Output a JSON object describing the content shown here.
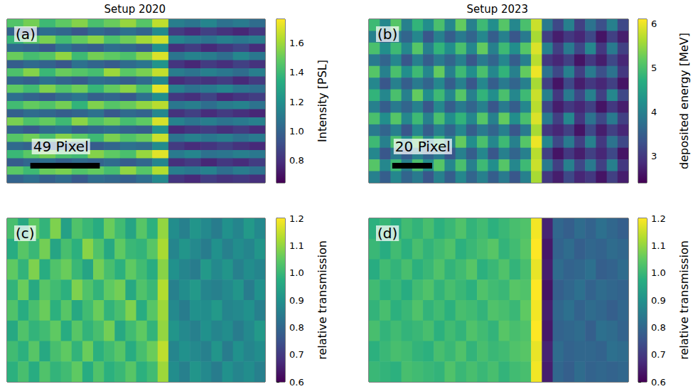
{
  "chart_data": [
    {
      "type": "heatmap",
      "title": "Setup 2020",
      "panel_label": "(a)",
      "xlim": [
        0,
        182
      ],
      "ylim": [
        0,
        115
      ],
      "tick_labels": false,
      "scale_bar": {
        "length": 49,
        "label": "49 Pixel"
      },
      "colorbar": {
        "label": "Intensity [PSL]",
        "range": [
          0.65,
          1.76
        ],
        "ticks": [
          0.8,
          {
            "value": 1,
            "label": "1.0"
          },
          1.2,
          1.4,
          1.6
        ]
      },
      "cells": [
        [
          1.45,
          1.52,
          1.4,
          1.48,
          1.55,
          1.43,
          1.5,
          1.58,
          1.46,
          1.65,
          1.12,
          1.08,
          1.15,
          1.06,
          1.1,
          1.04
        ],
        [
          1.0,
          0.97,
          1.05,
          1.02,
          0.95,
          1.03,
          0.99,
          1.06,
          1.01,
          1.18,
          0.84,
          0.79,
          0.86,
          0.81,
          0.77,
          0.83
        ],
        [
          1.38,
          1.47,
          1.53,
          1.41,
          1.49,
          1.56,
          1.44,
          1.51,
          1.6,
          1.68,
          1.15,
          1.1,
          1.07,
          1.13,
          1.09,
          1.11
        ],
        [
          1.04,
          1.01,
          0.96,
          1.07,
          1.0,
          0.98,
          1.05,
          1.02,
          0.97,
          1.2,
          0.8,
          0.85,
          0.78,
          0.83,
          0.88,
          0.79
        ],
        [
          1.5,
          1.42,
          1.46,
          1.57,
          1.4,
          1.52,
          1.48,
          1.44,
          1.55,
          1.7,
          1.08,
          1.14,
          1.11,
          1.05,
          1.16,
          1.09
        ],
        [
          0.98,
          1.03,
          1.0,
          0.95,
          1.06,
          1.01,
          0.97,
          1.04,
          1.08,
          1.22,
          0.82,
          0.77,
          0.84,
          0.8,
          0.86,
          0.81
        ],
        [
          1.44,
          1.55,
          1.39,
          1.5,
          1.46,
          1.42,
          1.59,
          1.47,
          1.53,
          1.66,
          1.11,
          1.07,
          1.13,
          1.09,
          1.04,
          1.12
        ],
        [
          1.02,
          0.99,
          1.06,
          1.01,
          0.97,
          1.05,
          1.03,
          0.98,
          1.04,
          1.17,
          0.79,
          0.83,
          0.81,
          0.85,
          0.78,
          0.84
        ],
        [
          1.48,
          1.41,
          1.54,
          1.45,
          1.51,
          1.38,
          1.49,
          1.56,
          1.43,
          1.72,
          1.13,
          1.06,
          1.1,
          1.15,
          1.08,
          1.05
        ],
        [
          1.05,
          1.0,
          0.97,
          1.03,
          1.08,
          0.99,
          1.01,
          0.96,
          1.06,
          1.19,
          0.83,
          0.8,
          0.87,
          0.78,
          0.82,
          0.85
        ],
        [
          1.41,
          1.49,
          1.45,
          1.52,
          1.37,
          1.54,
          1.46,
          1.5,
          1.57,
          1.64,
          1.09,
          1.12,
          1.05,
          1.11,
          1.14,
          1.07
        ],
        [
          0.99,
          1.04,
          1.02,
          0.98,
          1.01,
          1.06,
          0.96,
          1.03,
          1.0,
          1.16,
          0.81,
          0.86,
          0.79,
          0.84,
          0.8,
          0.77
        ],
        [
          1.53,
          1.44,
          1.49,
          1.4,
          1.56,
          1.45,
          1.51,
          1.42,
          1.48,
          1.69,
          1.14,
          1.08,
          1.12,
          1.07,
          1.1,
          1.13
        ],
        [
          1.01,
          0.96,
          1.04,
          1.07,
          0.99,
          1.02,
          1.05,
          1.0,
          0.98,
          1.21,
          0.78,
          0.82,
          0.85,
          0.8,
          0.84,
          0.79
        ],
        [
          1.46,
          1.51,
          1.43,
          1.55,
          1.48,
          1.4,
          1.53,
          1.45,
          1.5,
          1.67,
          1.07,
          1.13,
          1.09,
          1.12,
          1.06,
          1.1
        ],
        [
          1.03,
          1.0,
          0.98,
          1.02,
          1.05,
          0.97,
          1.01,
          1.06,
          1.04,
          1.18,
          0.84,
          0.79,
          0.82,
          0.86,
          0.81,
          0.78
        ],
        [
          1.39,
          1.47,
          1.52,
          1.44,
          1.41,
          1.55,
          1.48,
          1.43,
          1.58,
          1.71,
          1.1,
          1.15,
          1.06,
          1.08,
          1.12,
          1.09
        ],
        [
          0.97,
          1.02,
          1.05,
          0.99,
          1.03,
          1.0,
          1.04,
          0.97,
          1.02,
          1.15,
          0.8,
          0.84,
          0.77,
          0.83,
          0.79,
          0.85
        ],
        [
          1.47,
          1.4,
          1.5,
          1.53,
          1.45,
          1.49,
          1.42,
          1.57,
          1.46,
          1.63,
          1.12,
          1.09,
          1.14,
          1.05,
          1.11,
          1.06
        ],
        [
          1.0,
          1.05,
          0.99,
          1.03,
          0.96,
          1.04,
          1.02,
          0.99,
          1.05,
          1.17,
          0.82,
          0.78,
          0.85,
          0.81,
          0.83,
          0.8
        ]
      ]
    },
    {
      "type": "heatmap",
      "title": "Setup 2023",
      "panel_label": "(b)",
      "xlim": [
        0,
        130
      ],
      "ylim": [
        0,
        82
      ],
      "tick_labels": false,
      "scale_bar": {
        "length": 20,
        "label": "20 Pixel"
      },
      "colorbar": {
        "label": "deposited energy [MeV]",
        "range": [
          2.4,
          6.1
        ],
        "ticks": [
          3,
          4,
          5,
          6
        ]
      },
      "cells": [
        [
          4.9,
          4.1,
          5.1,
          4.0,
          4.8,
          4.2,
          5.0,
          4.1,
          5.2,
          4.0,
          4.9,
          4.2,
          5.1,
          4.1,
          5.0,
          5.8,
          3.9,
          3.2,
          4.0,
          3.1,
          3.8,
          3.3,
          4.0,
          3.2
        ],
        [
          4.0,
          3.5,
          3.9,
          3.6,
          4.1,
          3.4,
          4.0,
          3.5,
          3.9,
          3.6,
          4.1,
          3.5,
          4.0,
          3.4,
          3.9,
          5.6,
          3.1,
          2.7,
          3.0,
          2.8,
          3.2,
          2.6,
          3.1,
          2.7
        ],
        [
          5.0,
          4.2,
          4.9,
          4.1,
          5.1,
          4.0,
          4.8,
          4.2,
          5.0,
          4.1,
          5.2,
          4.0,
          4.9,
          4.2,
          5.1,
          5.9,
          4.0,
          3.1,
          3.9,
          3.2,
          4.1,
          3.0,
          3.9,
          3.1
        ],
        [
          3.9,
          3.6,
          4.1,
          3.4,
          4.0,
          3.5,
          3.9,
          3.6,
          4.0,
          3.4,
          3.9,
          3.6,
          4.1,
          3.5,
          4.0,
          5.7,
          3.0,
          2.8,
          3.1,
          2.6,
          3.0,
          2.7,
          3.2,
          2.8
        ],
        [
          5.1,
          4.0,
          5.0,
          4.2,
          4.9,
          4.1,
          5.2,
          4.0,
          4.9,
          4.2,
          5.0,
          4.1,
          4.8,
          4.0,
          5.2,
          6.0,
          3.8,
          3.2,
          4.0,
          3.1,
          3.9,
          3.3,
          3.8,
          3.0
        ],
        [
          4.1,
          3.4,
          4.0,
          3.5,
          3.9,
          3.6,
          4.1,
          3.5,
          4.0,
          3.4,
          4.1,
          3.5,
          3.9,
          3.6,
          4.0,
          5.6,
          3.1,
          2.6,
          3.2,
          2.7,
          3.0,
          2.8,
          3.1,
          2.6
        ],
        [
          4.8,
          4.1,
          5.0,
          4.0,
          5.2,
          4.2,
          4.9,
          4.1,
          5.1,
          4.0,
          4.8,
          4.2,
          5.0,
          4.1,
          4.9,
          5.8,
          4.0,
          3.0,
          3.9,
          3.2,
          4.0,
          3.1,
          4.1,
          3.2
        ],
        [
          4.0,
          3.5,
          3.9,
          3.6,
          4.0,
          3.4,
          4.1,
          3.5,
          3.9,
          3.6,
          4.0,
          3.4,
          3.9,
          3.5,
          4.1,
          5.7,
          3.2,
          2.7,
          3.0,
          2.8,
          3.1,
          2.6,
          3.0,
          2.7
        ],
        [
          5.0,
          4.2,
          5.1,
          4.1,
          4.9,
          4.0,
          5.0,
          4.2,
          4.8,
          4.1,
          5.1,
          4.0,
          5.2,
          4.2,
          5.0,
          5.9,
          3.9,
          3.1,
          4.1,
          3.0,
          3.8,
          3.2,
          3.9,
          3.1
        ],
        [
          3.9,
          3.6,
          4.0,
          3.4,
          4.1,
          3.5,
          4.0,
          3.6,
          4.1,
          3.5,
          3.9,
          3.6,
          4.0,
          3.4,
          3.9,
          5.6,
          3.0,
          2.8,
          3.1,
          2.6,
          3.2,
          2.7,
          3.1,
          2.8
        ],
        [
          4.9,
          4.0,
          5.0,
          4.2,
          5.1,
          4.1,
          4.9,
          4.0,
          5.2,
          4.2,
          5.0,
          4.1,
          4.9,
          4.0,
          5.1,
          6.0,
          4.1,
          3.2,
          3.9,
          3.1,
          4.0,
          3.0,
          3.8,
          3.2
        ],
        [
          4.1,
          3.4,
          3.9,
          3.5,
          4.0,
          3.6,
          3.9,
          3.4,
          4.0,
          3.5,
          4.1,
          3.4,
          4.0,
          3.6,
          4.0,
          5.7,
          3.1,
          2.6,
          3.0,
          2.7,
          3.1,
          2.8,
          3.2,
          2.6
        ],
        [
          5.1,
          4.1,
          4.9,
          4.0,
          5.0,
          4.2,
          5.1,
          4.1,
          5.0,
          4.0,
          4.9,
          4.2,
          5.1,
          4.1,
          4.9,
          5.8,
          3.9,
          3.1,
          4.0,
          3.2,
          3.9,
          3.1,
          4.0,
          3.0
        ],
        [
          4.0,
          3.5,
          4.1,
          3.6,
          3.9,
          3.4,
          4.0,
          3.5,
          4.1,
          3.6,
          4.0,
          3.5,
          3.9,
          3.4,
          4.0,
          5.6,
          3.0,
          2.7,
          3.2,
          2.8,
          3.0,
          2.6,
          3.1,
          2.7
        ]
      ]
    },
    {
      "type": "heatmap",
      "panel_label": "(c)",
      "xlim": [
        0,
        182
      ],
      "ylim": [
        0,
        115
      ],
      "tick_labels": false,
      "colorbar": {
        "label": "relative transmission",
        "range": [
          0.6,
          1.2
        ],
        "ticks": [
          0.6,
          0.7,
          0.8,
          0.9,
          {
            "value": 1,
            "label": "1.0"
          },
          1.1,
          1.2
        ]
      },
      "cells": [
        [
          1.02,
          0.96,
          1.05,
          0.99,
          1.08,
          0.94,
          1.03,
          1.0,
          0.97,
          1.06,
          1.01,
          0.95,
          1.04,
          0.98,
          1.1,
          0.89,
          0.86,
          0.91,
          0.88,
          0.85,
          0.9,
          0.87,
          0.92,
          0.88
        ],
        [
          0.97,
          1.04,
          1.0,
          1.07,
          0.95,
          1.02,
          0.98,
          1.09,
          1.03,
          0.96,
          1.05,
          1.0,
          0.99,
          1.04,
          1.12,
          0.87,
          0.91,
          0.88,
          0.85,
          0.9,
          0.86,
          0.89,
          0.87,
          0.91
        ],
        [
          1.05,
          0.99,
          1.08,
          0.97,
          1.03,
          1.06,
          1.0,
          0.95,
          1.07,
          1.02,
          0.98,
          1.05,
          1.01,
          0.97,
          1.09,
          0.9,
          0.87,
          0.85,
          0.92,
          0.88,
          0.91,
          0.86,
          0.89,
          0.87
        ],
        [
          0.99,
          1.06,
          0.96,
          1.04,
          1.01,
          0.98,
          1.08,
          1.03,
          0.99,
          1.05,
          1.07,
          0.96,
          1.03,
          1.0,
          1.13,
          0.86,
          0.89,
          0.92,
          0.87,
          0.86,
          0.88,
          0.91,
          0.85,
          0.9
        ],
        [
          1.03,
          0.97,
          1.02,
          1.06,
          0.98,
          1.04,
          0.96,
          1.01,
          1.06,
          0.99,
          1.02,
          1.08,
          0.97,
          1.04,
          1.11,
          0.88,
          0.85,
          0.9,
          0.89,
          0.92,
          0.87,
          0.88,
          0.9,
          0.86
        ],
        [
          0.96,
          1.03,
          0.99,
          1.01,
          1.05,
          0.97,
          1.04,
          0.99,
          1.02,
          1.07,
          0.96,
          1.01,
          1.05,
          0.99,
          1.1,
          0.91,
          0.88,
          0.86,
          0.9,
          0.87,
          0.89,
          0.85,
          0.88,
          0.92
        ],
        [
          1.01,
          0.98,
          1.04,
          0.96,
          1.02,
          1.05,
          0.99,
          1.06,
          0.98,
          1.01,
          1.04,
          0.97,
          1.02,
          1.06,
          1.14,
          0.87,
          0.9,
          0.88,
          0.86,
          0.91,
          0.85,
          0.9,
          0.87,
          0.89
        ],
        [
          0.98,
          1.02,
          0.97,
          1.03,
          0.99,
          1.01,
          1.05,
          0.97,
          1.03,
          0.98,
          1.0,
          1.04,
          0.98,
          1.01,
          1.11,
          0.89,
          0.86,
          0.91,
          0.88,
          0.85,
          0.9,
          0.87,
          0.89,
          0.86
        ]
      ]
    },
    {
      "type": "heatmap",
      "panel_label": "(d)",
      "xlim": [
        0,
        130
      ],
      "ylim": [
        0,
        82
      ],
      "tick_labels": false,
      "colorbar": {
        "label": "relative transmission",
        "range": [
          0.6,
          1.2
        ],
        "ticks": [
          0.6,
          0.7,
          0.8,
          0.9,
          {
            "value": 1,
            "label": "1.0"
          },
          1.1,
          1.2
        ]
      },
      "cells": [
        [
          0.98,
          1.0,
          0.97,
          1.01,
          0.99,
          1.02,
          0.98,
          1.0,
          1.03,
          0.99,
          1.01,
          0.98,
          1.0,
          1.02,
          1.03,
          1.19,
          0.66,
          0.8,
          0.78,
          0.81,
          0.79,
          0.82,
          0.8,
          0.78
        ],
        [
          1.0,
          0.97,
          1.01,
          0.98,
          1.02,
          0.99,
          1.01,
          1.03,
          0.98,
          1.0,
          1.02,
          1.04,
          0.99,
          1.01,
          1.04,
          1.2,
          0.64,
          0.79,
          0.81,
          0.78,
          0.8,
          0.79,
          0.81,
          0.8
        ],
        [
          0.97,
          1.01,
          0.99,
          1.02,
          0.98,
          1.0,
          1.03,
          0.99,
          1.01,
          1.04,
          0.98,
          1.0,
          1.03,
          0.99,
          1.02,
          1.18,
          0.65,
          0.81,
          0.79,
          0.8,
          0.82,
          0.78,
          0.79,
          0.81
        ],
        [
          1.01,
          0.98,
          1.0,
          0.97,
          1.01,
          1.03,
          0.99,
          1.02,
          1.0,
          0.98,
          1.03,
          1.01,
          1.0,
          1.04,
          1.03,
          1.2,
          0.63,
          0.78,
          0.8,
          0.82,
          0.79,
          0.81,
          0.8,
          0.79
        ],
        [
          0.99,
          1.02,
          0.98,
          1.0,
          1.03,
          0.99,
          1.01,
          0.98,
          1.02,
          1.01,
          0.99,
          1.03,
          1.02,
          1.0,
          1.05,
          1.19,
          0.65,
          0.8,
          0.82,
          0.79,
          0.81,
          0.8,
          0.78,
          0.8
        ],
        [
          1.02,
          0.99,
          1.01,
          0.99,
          1.0,
          1.02,
          0.98,
          1.01,
          0.99,
          1.03,
          1.01,
          0.99,
          1.04,
          1.02,
          1.03,
          1.2,
          0.64,
          0.79,
          0.8,
          0.81,
          0.78,
          0.82,
          0.81,
          0.79
        ],
        [
          0.98,
          1.0,
          1.02,
          1.01,
          0.99,
          0.98,
          1.02,
          1.0,
          1.03,
          0.99,
          1.02,
          1.0,
          1.01,
          1.03,
          1.04,
          1.18,
          0.66,
          0.81,
          0.79,
          0.8,
          0.8,
          0.79,
          0.82,
          0.81
        ],
        [
          1.0,
          0.99,
          0.98,
          1.02,
          1.01,
          1.0,
          0.99,
          1.03,
          1.0,
          1.02,
          1.0,
          1.02,
          0.99,
          1.01,
          1.02,
          1.19,
          0.65,
          0.8,
          0.78,
          0.81,
          0.79,
          0.8,
          0.79,
          0.8
        ]
      ]
    }
  ]
}
